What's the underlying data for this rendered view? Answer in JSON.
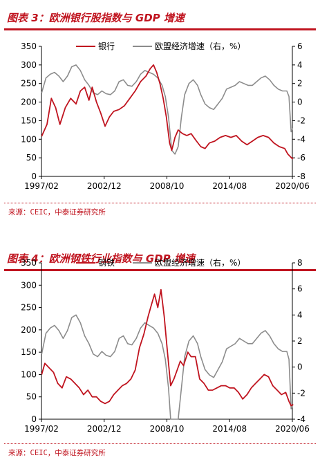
{
  "figures": [
    {
      "title": "图表 3：欧洲银行股指数与 GDP 增速",
      "source": "来源：CEIC，中泰证券研究所"
    },
    {
      "title": "图表 4：欧洲钢铁行业指数与 GDP 增速",
      "source": "来源：CEIC，中泰证券研究所"
    }
  ],
  "chart_data": [
    {
      "type": "line",
      "title": "图表 3：欧洲银行股指数与 GDP 增速",
      "x_ticks": [
        "1997/02",
        "2002/12",
        "2008/10",
        "2014/08",
        "2020/06"
      ],
      "x_range": [
        "1997/02",
        "2020/06"
      ],
      "y_left": {
        "range": [
          0,
          350
        ],
        "ticks": [
          "0",
          "50",
          "100",
          "150",
          "200",
          "250",
          "300",
          "350"
        ]
      },
      "y_right": {
        "range": [
          -8,
          6
        ],
        "ticks": [
          "-8",
          "-6",
          "-4",
          "-2",
          "0",
          "2",
          "4",
          "6"
        ]
      },
      "legend_position": "top",
      "series": [
        {
          "name": "银行",
          "axis": "left",
          "color": "#c0141f",
          "points": [
            [
              1997.1,
              108
            ],
            [
              1997.6,
              140
            ],
            [
              1998.0,
              210
            ],
            [
              1998.4,
              185
            ],
            [
              1998.8,
              140
            ],
            [
              1999.3,
              185
            ],
            [
              1999.8,
              210
            ],
            [
              2000.3,
              195
            ],
            [
              2000.7,
              230
            ],
            [
              2001.1,
              240
            ],
            [
              2001.5,
              205
            ],
            [
              2001.8,
              240
            ],
            [
              2002.2,
              200
            ],
            [
              2002.6,
              170
            ],
            [
              2003.0,
              135
            ],
            [
              2003.4,
              160
            ],
            [
              2003.8,
              175
            ],
            [
              2004.3,
              180
            ],
            [
              2004.8,
              190
            ],
            [
              2005.3,
              210
            ],
            [
              2005.8,
              230
            ],
            [
              2006.3,
              255
            ],
            [
              2006.8,
              270
            ],
            [
              2007.2,
              290
            ],
            [
              2007.5,
              300
            ],
            [
              2007.8,
              280
            ],
            [
              2008.1,
              250
            ],
            [
              2008.4,
              210
            ],
            [
              2008.7,
              160
            ],
            [
              2009.0,
              90
            ],
            [
              2009.2,
              70
            ],
            [
              2009.5,
              105
            ],
            [
              2009.8,
              125
            ],
            [
              2010.2,
              115
            ],
            [
              2010.6,
              110
            ],
            [
              2011.0,
              115
            ],
            [
              2011.5,
              95
            ],
            [
              2011.9,
              80
            ],
            [
              2012.3,
              75
            ],
            [
              2012.7,
              90
            ],
            [
              2013.2,
              95
            ],
            [
              2013.7,
              105
            ],
            [
              2014.2,
              110
            ],
            [
              2014.7,
              105
            ],
            [
              2015.2,
              110
            ],
            [
              2015.7,
              95
            ],
            [
              2016.2,
              85
            ],
            [
              2016.7,
              95
            ],
            [
              2017.2,
              105
            ],
            [
              2017.7,
              110
            ],
            [
              2018.2,
              105
            ],
            [
              2018.7,
              90
            ],
            [
              2019.2,
              80
            ],
            [
              2019.7,
              75
            ],
            [
              2020.0,
              60
            ],
            [
              2020.4,
              48
            ],
            [
              2020.5,
              50
            ]
          ]
        },
        {
          "name": "欧盟经济增速（右，%）",
          "axis": "right",
          "color": "#8c8c8c",
          "points": [
            [
              1997.1,
              1.0
            ],
            [
              1997.5,
              2.6
            ],
            [
              1997.9,
              3.0
            ],
            [
              1998.3,
              3.2
            ],
            [
              1998.7,
              2.8
            ],
            [
              1999.1,
              2.2
            ],
            [
              1999.5,
              2.8
            ],
            [
              1999.9,
              3.8
            ],
            [
              2000.3,
              4.0
            ],
            [
              2000.7,
              3.4
            ],
            [
              2001.1,
              2.4
            ],
            [
              2001.5,
              1.8
            ],
            [
              2001.9,
              1.0
            ],
            [
              2002.3,
              0.8
            ],
            [
              2002.7,
              1.2
            ],
            [
              2003.1,
              0.9
            ],
            [
              2003.5,
              0.8
            ],
            [
              2003.9,
              1.2
            ],
            [
              2004.3,
              2.2
            ],
            [
              2004.7,
              2.4
            ],
            [
              2005.1,
              1.8
            ],
            [
              2005.5,
              1.7
            ],
            [
              2005.9,
              2.2
            ],
            [
              2006.3,
              3.0
            ],
            [
              2006.7,
              3.4
            ],
            [
              2007.1,
              3.2
            ],
            [
              2007.5,
              3.0
            ],
            [
              2007.9,
              2.6
            ],
            [
              2008.3,
              1.8
            ],
            [
              2008.6,
              0.6
            ],
            [
              2008.9,
              -1.6
            ],
            [
              2009.2,
              -5.2
            ],
            [
              2009.5,
              -5.6
            ],
            [
              2009.8,
              -4.8
            ],
            [
              2010.1,
              -1.6
            ],
            [
              2010.4,
              0.8
            ],
            [
              2010.8,
              2.0
            ],
            [
              2011.2,
              2.4
            ],
            [
              2011.6,
              1.8
            ],
            [
              2011.9,
              0.8
            ],
            [
              2012.3,
              -0.2
            ],
            [
              2012.7,
              -0.6
            ],
            [
              2013.1,
              -0.8
            ],
            [
              2013.5,
              -0.2
            ],
            [
              2013.9,
              0.4
            ],
            [
              2014.3,
              1.4
            ],
            [
              2014.7,
              1.6
            ],
            [
              2015.1,
              1.8
            ],
            [
              2015.5,
              2.2
            ],
            [
              2015.9,
              2.0
            ],
            [
              2016.3,
              1.8
            ],
            [
              2016.7,
              1.8
            ],
            [
              2017.1,
              2.2
            ],
            [
              2017.5,
              2.6
            ],
            [
              2017.9,
              2.8
            ],
            [
              2018.3,
              2.4
            ],
            [
              2018.7,
              1.8
            ],
            [
              2019.1,
              1.4
            ],
            [
              2019.5,
              1.2
            ],
            [
              2019.9,
              1.2
            ],
            [
              2020.1,
              0.6
            ],
            [
              2020.3,
              -3.2
            ],
            [
              2020.45,
              -2.8
            ]
          ]
        }
      ]
    },
    {
      "type": "line",
      "title": "图表 4：欧洲钢铁行业指数与 GDP 增速",
      "x_ticks": [
        "1997/02",
        "2002/12",
        "2008/10",
        "2014/08",
        "2020/06"
      ],
      "x_range": [
        "1997/02",
        "2020/06"
      ],
      "y_left": {
        "range": [
          0,
          350
        ],
        "ticks": [
          "0",
          "50",
          "100",
          "150",
          "200",
          "250",
          "300",
          "350"
        ]
      },
      "y_right": {
        "range": [
          -4,
          8
        ],
        "ticks": [
          "-4",
          "-2",
          "0",
          "2",
          "4",
          "6",
          "8"
        ]
      },
      "legend_position": "top",
      "series": [
        {
          "name": "钢铁",
          "axis": "left",
          "color": "#c0141f",
          "points": [
            [
              1997.1,
              100
            ],
            [
              1997.4,
              125
            ],
            [
              1997.8,
              115
            ],
            [
              1998.2,
              105
            ],
            [
              1998.6,
              80
            ],
            [
              1999.0,
              70
            ],
            [
              1999.4,
              95
            ],
            [
              1999.8,
              90
            ],
            [
              2000.2,
              80
            ],
            [
              2000.6,
              70
            ],
            [
              2001.0,
              55
            ],
            [
              2001.4,
              65
            ],
            [
              2001.8,
              50
            ],
            [
              2002.2,
              50
            ],
            [
              2002.6,
              40
            ],
            [
              2003.0,
              35
            ],
            [
              2003.4,
              40
            ],
            [
              2003.8,
              55
            ],
            [
              2004.2,
              65
            ],
            [
              2004.6,
              75
            ],
            [
              2005.0,
              80
            ],
            [
              2005.4,
              90
            ],
            [
              2005.8,
              110
            ],
            [
              2006.2,
              160
            ],
            [
              2006.6,
              190
            ],
            [
              2007.0,
              230
            ],
            [
              2007.3,
              255
            ],
            [
              2007.6,
              280
            ],
            [
              2007.9,
              250
            ],
            [
              2008.2,
              290
            ],
            [
              2008.5,
              230
            ],
            [
              2008.8,
              150
            ],
            [
              2009.1,
              75
            ],
            [
              2009.4,
              90
            ],
            [
              2009.7,
              110
            ],
            [
              2010.0,
              130
            ],
            [
              2010.3,
              120
            ],
            [
              2010.7,
              150
            ],
            [
              2011.0,
              140
            ],
            [
              2011.4,
              140
            ],
            [
              2011.8,
              90
            ],
            [
              2012.2,
              80
            ],
            [
              2012.6,
              65
            ],
            [
              2013.0,
              65
            ],
            [
              2013.4,
              70
            ],
            [
              2013.8,
              75
            ],
            [
              2014.2,
              75
            ],
            [
              2014.6,
              70
            ],
            [
              2015.0,
              70
            ],
            [
              2015.4,
              60
            ],
            [
              2015.8,
              45
            ],
            [
              2016.2,
              55
            ],
            [
              2016.6,
              70
            ],
            [
              2017.0,
              80
            ],
            [
              2017.4,
              90
            ],
            [
              2017.8,
              100
            ],
            [
              2018.2,
              95
            ],
            [
              2018.6,
              75
            ],
            [
              2019.0,
              65
            ],
            [
              2019.4,
              55
            ],
            [
              2019.8,
              60
            ],
            [
              2020.1,
              40
            ],
            [
              2020.3,
              30
            ],
            [
              2020.5,
              33
            ]
          ]
        },
        {
          "name": "欧盟经济增速（右，%）",
          "axis": "right",
          "color": "#8c8c8c",
          "points": [
            [
              1997.1,
              1.0
            ],
            [
              1997.5,
              2.6
            ],
            [
              1997.9,
              3.0
            ],
            [
              1998.3,
              3.2
            ],
            [
              1998.7,
              2.8
            ],
            [
              1999.1,
              2.2
            ],
            [
              1999.5,
              2.8
            ],
            [
              1999.9,
              3.8
            ],
            [
              2000.3,
              4.0
            ],
            [
              2000.7,
              3.4
            ],
            [
              2001.1,
              2.4
            ],
            [
              2001.5,
              1.8
            ],
            [
              2001.9,
              1.0
            ],
            [
              2002.3,
              0.8
            ],
            [
              2002.7,
              1.2
            ],
            [
              2003.1,
              0.9
            ],
            [
              2003.5,
              0.8
            ],
            [
              2003.9,
              1.2
            ],
            [
              2004.3,
              2.2
            ],
            [
              2004.7,
              2.4
            ],
            [
              2005.1,
              1.8
            ],
            [
              2005.5,
              1.7
            ],
            [
              2005.9,
              2.2
            ],
            [
              2006.3,
              3.0
            ],
            [
              2006.7,
              3.4
            ],
            [
              2007.1,
              3.2
            ],
            [
              2007.5,
              3.0
            ],
            [
              2007.9,
              2.6
            ],
            [
              2008.3,
              1.8
            ],
            [
              2008.6,
              0.6
            ],
            [
              2008.9,
              -1.6
            ],
            [
              2009.1,
              -4.0
            ],
            [
              2009.5,
              -4.0
            ],
            [
              2009.8,
              -4.0
            ],
            [
              2010.1,
              -1.6
            ],
            [
              2010.4,
              0.8
            ],
            [
              2010.8,
              2.0
            ],
            [
              2011.2,
              2.4
            ],
            [
              2011.6,
              1.8
            ],
            [
              2011.9,
              0.8
            ],
            [
              2012.3,
              -0.2
            ],
            [
              2012.7,
              -0.6
            ],
            [
              2013.1,
              -0.8
            ],
            [
              2013.5,
              -0.2
            ],
            [
              2013.9,
              0.4
            ],
            [
              2014.3,
              1.4
            ],
            [
              2014.7,
              1.6
            ],
            [
              2015.1,
              1.8
            ],
            [
              2015.5,
              2.2
            ],
            [
              2015.9,
              2.0
            ],
            [
              2016.3,
              1.8
            ],
            [
              2016.7,
              1.8
            ],
            [
              2017.1,
              2.2
            ],
            [
              2017.5,
              2.6
            ],
            [
              2017.9,
              2.8
            ],
            [
              2018.3,
              2.4
            ],
            [
              2018.7,
              1.8
            ],
            [
              2019.1,
              1.4
            ],
            [
              2019.5,
              1.2
            ],
            [
              2019.9,
              1.2
            ],
            [
              2020.1,
              0.6
            ],
            [
              2020.3,
              -3.2
            ],
            [
              2020.45,
              -3.0
            ]
          ]
        }
      ]
    }
  ]
}
